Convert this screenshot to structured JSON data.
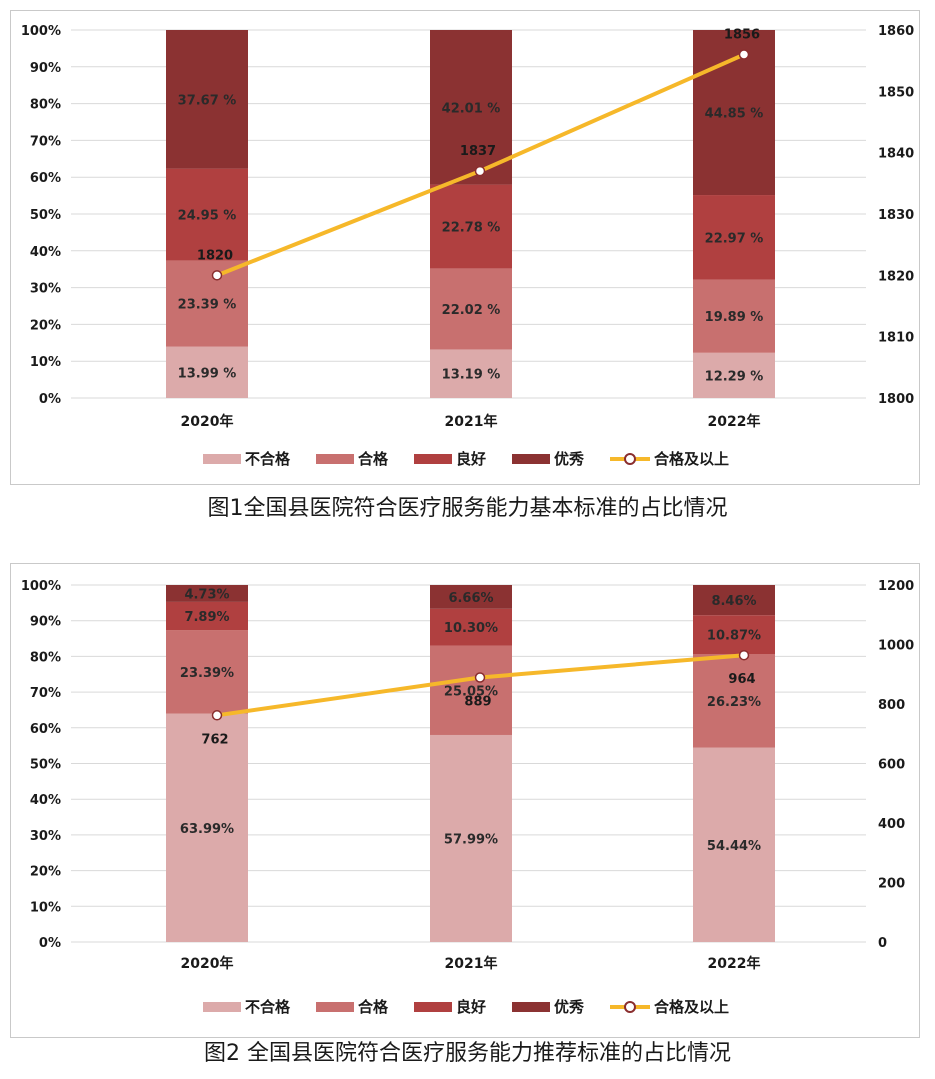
{
  "colors": {
    "不合格": "#dcaaaa",
    "合格": "#c8706f",
    "良好": "#b04040",
    "优秀": "#8b3232",
    "line": "#f6b82a",
    "marker_edge": "#8a2e2e"
  },
  "chart_data": [
    {
      "type": "bar",
      "stacked": true,
      "categories": [
        "2020年",
        "2021年",
        "2022年"
      ],
      "ylim": [
        0,
        100
      ],
      "yticks": [
        "0%",
        "10%",
        "20%",
        "30%",
        "40%",
        "50%",
        "60%",
        "70%",
        "80%",
        "90%",
        "100%"
      ],
      "y2lim": [
        1800,
        1860
      ],
      "y2ticks": [
        "1800",
        "1810",
        "1820",
        "1830",
        "1840",
        "1850",
        "1860"
      ],
      "grid": true,
      "legend_position": "bottom",
      "series": [
        {
          "name": "不合格",
          "values": [
            13.99,
            13.19,
            12.29
          ],
          "labels": [
            "13.99 %",
            "13.19 %",
            "12.29 %"
          ]
        },
        {
          "name": "合格",
          "values": [
            23.39,
            22.02,
            19.89
          ],
          "labels": [
            "23.39 %",
            "22.02 %",
            "19.89 %"
          ]
        },
        {
          "name": "良好",
          "values": [
            24.95,
            22.78,
            22.97
          ],
          "labels": [
            "24.95 %",
            "22.78 %",
            "22.97 %"
          ]
        },
        {
          "name": "优秀",
          "values": [
            37.67,
            42.01,
            44.85
          ],
          "labels": [
            "37.67 %",
            "42.01 %",
            "44.85 %"
          ]
        }
      ],
      "line": {
        "name": "合格及以上",
        "values": [
          1820,
          1837,
          1856
        ],
        "labels": [
          "1820",
          "1837",
          "1856"
        ]
      },
      "caption": "图1全国县医院符合医疗服务能力基本标准的占比情况"
    },
    {
      "type": "bar",
      "stacked": true,
      "categories": [
        "2020年",
        "2021年",
        "2022年"
      ],
      "ylim": [
        0,
        100
      ],
      "yticks": [
        "0%",
        "10%",
        "20%",
        "30%",
        "40%",
        "50%",
        "60%",
        "70%",
        "80%",
        "90%",
        "100%"
      ],
      "y2lim": [
        0,
        1200
      ],
      "y2ticks": [
        "0",
        "200",
        "400",
        "600",
        "800",
        "1000",
        "1200"
      ],
      "grid": true,
      "legend_position": "bottom",
      "series": [
        {
          "name": "不合格",
          "values": [
            63.99,
            57.99,
            54.44
          ],
          "labels": [
            "63.99%",
            "57.99%",
            "54.44%"
          ]
        },
        {
          "name": "合格",
          "values": [
            23.39,
            25.05,
            26.23
          ],
          "labels": [
            "23.39%",
            "25.05%",
            "26.23%"
          ]
        },
        {
          "name": "良好",
          "values": [
            7.89,
            10.3,
            10.87
          ],
          "labels": [
            "7.89%",
            "10.30%",
            "10.87%"
          ]
        },
        {
          "name": "优秀",
          "values": [
            4.73,
            6.66,
            8.46
          ],
          "labels": [
            "4.73%",
            "6.66%",
            "8.46%"
          ]
        }
      ],
      "line": {
        "name": "合格及以上",
        "values": [
          762,
          889,
          964
        ],
        "labels": [
          "762",
          "889",
          "964"
        ]
      },
      "caption": "图2 全国县医院符合医疗服务能力推荐标准的占比情况"
    }
  ]
}
